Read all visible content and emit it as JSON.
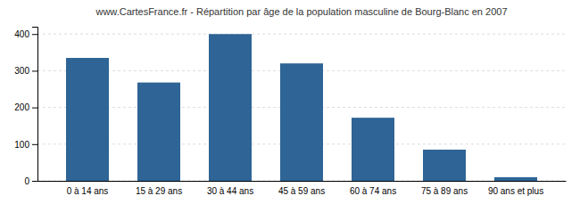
{
  "chart_data": {
    "type": "bar",
    "title": "www.CartesFrance.fr - Répartition par âge de la population masculine de Bourg-Blanc en 2007",
    "categories": [
      "0 à 14 ans",
      "15 à 29 ans",
      "30 à 44 ans",
      "45 à 59 ans",
      "60 à 74 ans",
      "75 à 89 ans",
      "90 ans et plus"
    ],
    "values": [
      335,
      268,
      400,
      320,
      172,
      85,
      10
    ],
    "color": "#2e6496",
    "ylim": [
      0,
      420
    ],
    "yticks": [
      0,
      100,
      200,
      300,
      400
    ],
    "grid": true
  }
}
